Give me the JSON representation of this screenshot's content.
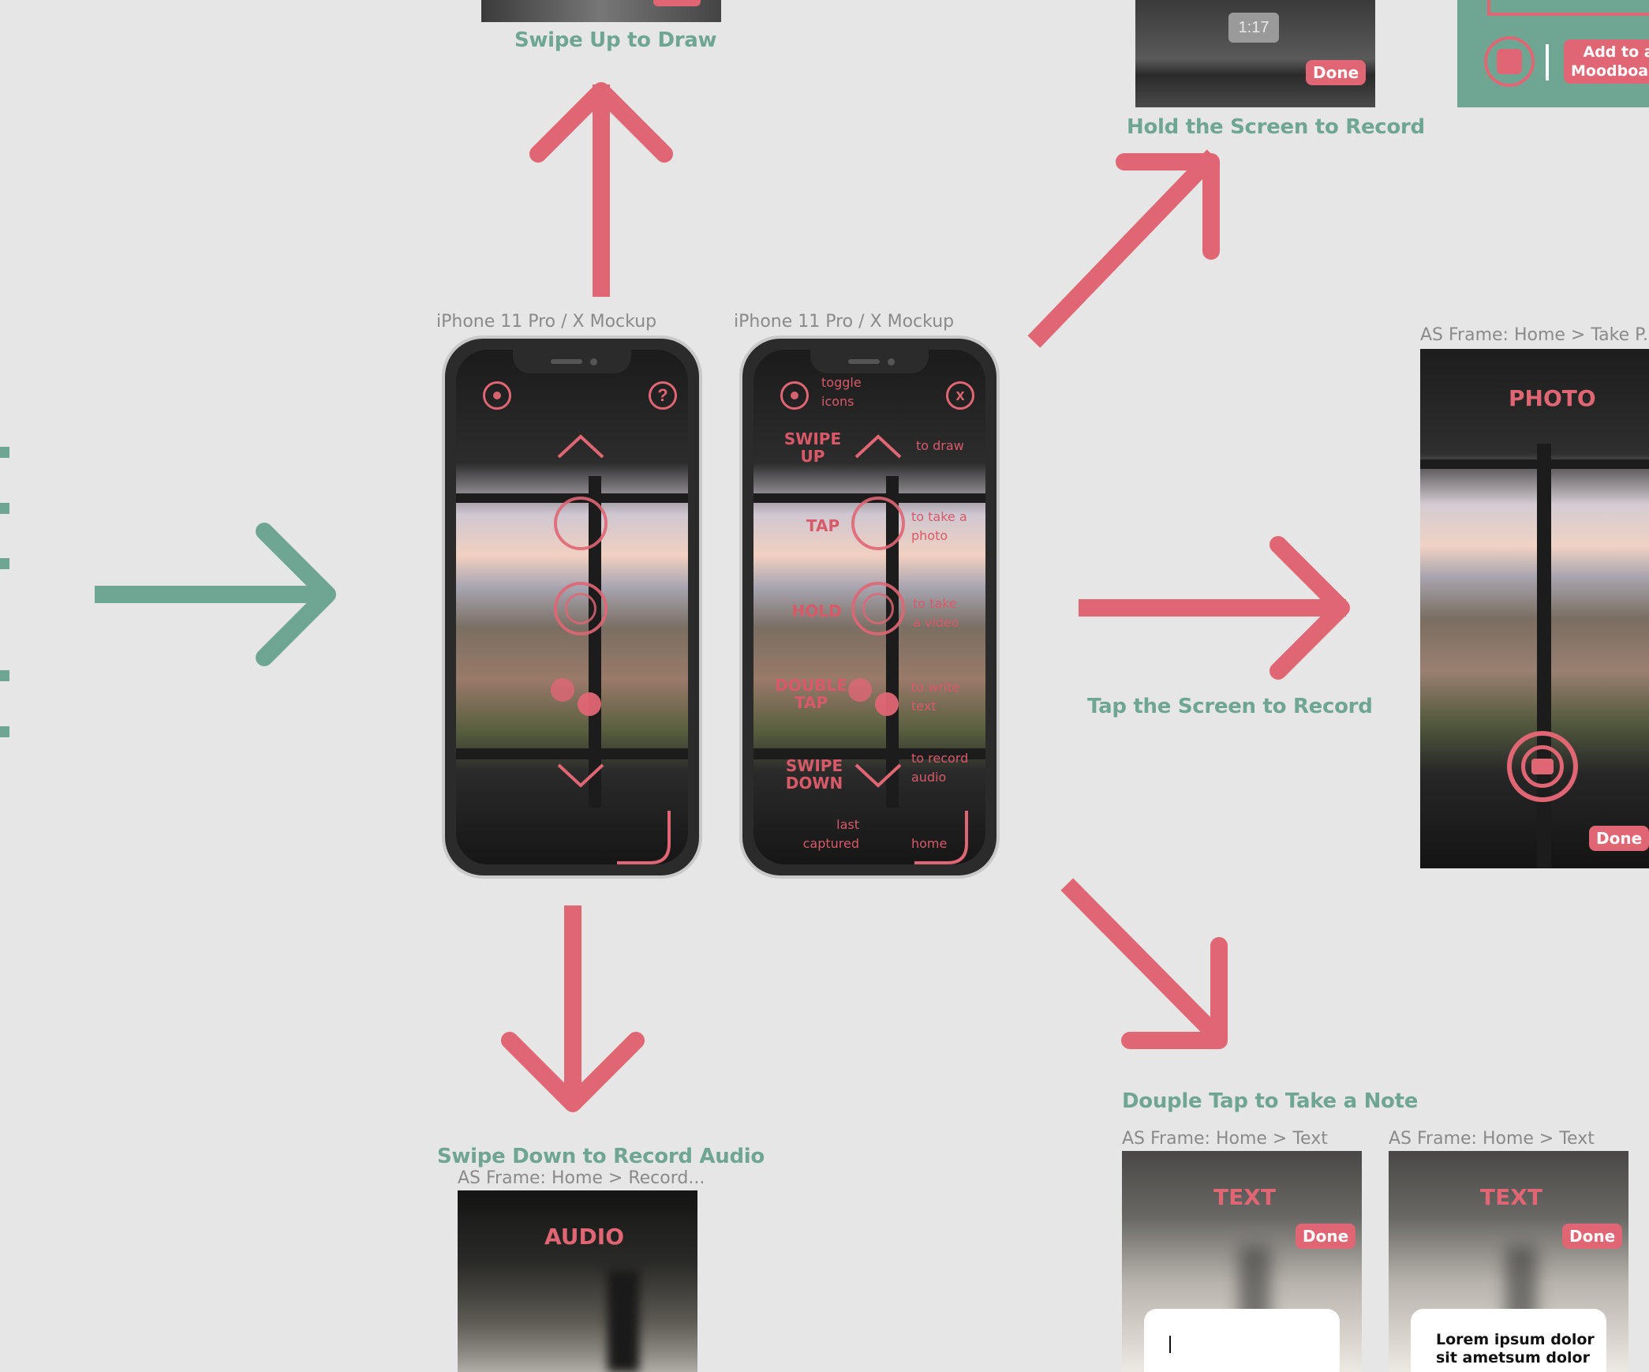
{
  "flow": {
    "swipe_up": "Swipe Up to Draw",
    "hold": "Hold the Screen to Record",
    "tap": "Tap the Screen to Record",
    "swipe_down": "Swipe Down to Record Audio",
    "double_tap": "Douple Tap to Take a Note"
  },
  "mockups": [
    {
      "label": "iPhone 11 Pro / X Mockup"
    },
    {
      "label": "iPhone 11 Pro / X Mockup"
    }
  ],
  "help_phone": {
    "toggle": "toggle\nicons",
    "swipe_up": "SWIPE\nUP",
    "to_draw": "to draw",
    "tap": "TAP",
    "to_photo": "to take a\nphoto",
    "hold": "HOLD",
    "to_video": "to take\na video",
    "double_tap": "DOUBLE\nTAP",
    "to_text": "to write\ntext",
    "swipe_down": "SWIPE\nDOWN",
    "to_audio": "to record\naudio",
    "last_captured": "last\ncaptured",
    "home": "home"
  },
  "frames": {
    "photo": {
      "label": "AS Frame: Home > Take P...",
      "title": "PHOTO",
      "done": "Done"
    },
    "video": {
      "timer": "1:17",
      "done": "Done"
    },
    "moodboard": {
      "button": "Add to a\nMoodboard"
    },
    "audio": {
      "label": "AS Frame: Home > Record...",
      "title": "AUDIO"
    },
    "text1": {
      "label": "AS Frame: Home > Text",
      "title": "TEXT",
      "done": "Done",
      "content": ""
    },
    "text2": {
      "label": "AS Frame: Home > Text",
      "title": "TEXT",
      "done": "Done",
      "content": "Lorem ipsum dolor\nsit ametsum dolor"
    }
  },
  "colors": {
    "accent": "#e06674",
    "teal": "#6fa593",
    "canvas": "#e6e6e6"
  }
}
